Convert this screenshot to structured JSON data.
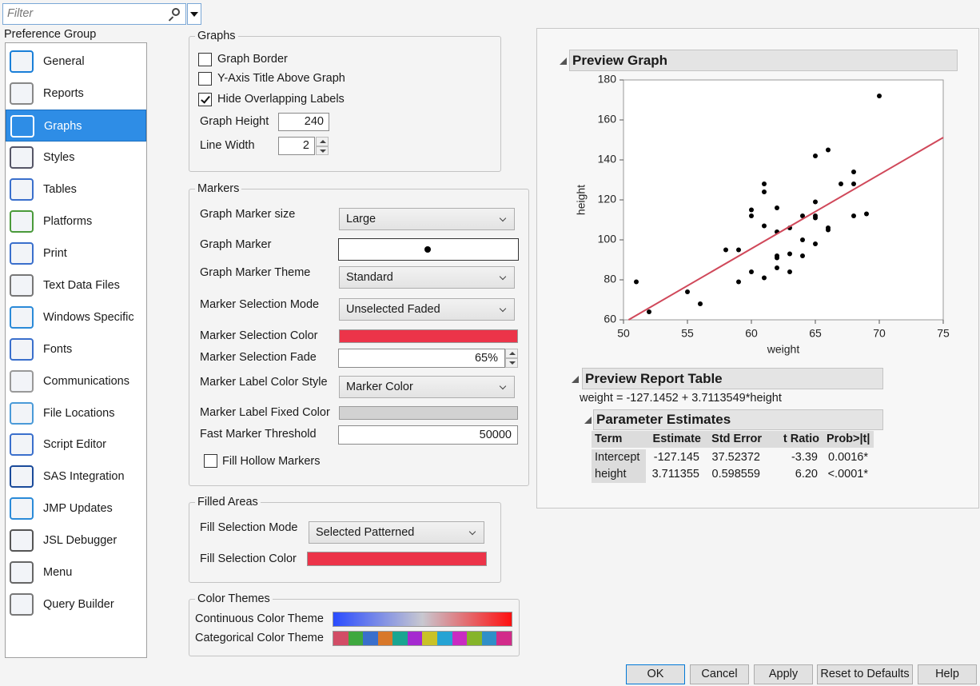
{
  "filter": {
    "placeholder": "Filter"
  },
  "preference_group": {
    "label": "Preference Group",
    "selected": 2,
    "items": [
      "General",
      "Reports",
      "Graphs",
      "Styles",
      "Tables",
      "Platforms",
      "Print",
      "Text Data Files",
      "Windows Specific",
      "Fonts",
      "Communications",
      "File Locations",
      "Script Editor",
      "SAS Integration",
      "JMP Updates",
      "JSL Debugger",
      "Menu",
      "Query Builder"
    ]
  },
  "graphs": {
    "legend": "Graphs",
    "checkboxes": [
      {
        "label": "Graph Border",
        "checked": false
      },
      {
        "label": "Y-Axis Title Above Graph",
        "checked": false
      },
      {
        "label": "Hide Overlapping Labels",
        "checked": true
      }
    ],
    "fields": [
      {
        "label": "Graph Height",
        "value": 240,
        "spin": false
      },
      {
        "label": "Line Width",
        "value": 2,
        "spin": true
      }
    ]
  },
  "markers": {
    "legend": "Markers",
    "rows": [
      {
        "label": "Graph Marker size",
        "dropdown": "Large"
      },
      {
        "label": "Graph Marker",
        "marker_color": "#000000"
      },
      {
        "label": "Graph Marker Theme",
        "dropdown": "Standard"
      },
      {
        "label": "Marker Selection Mode",
        "dropdown": "Unselected Faded"
      },
      {
        "label": "Marker Selection Color",
        "color": "#ec3449"
      },
      {
        "label": "Marker Selection Fade",
        "spin_text": "65%"
      },
      {
        "label": "Marker Label Color Style",
        "dropdown": "Marker Color"
      },
      {
        "label": "Marker Label Fixed Color",
        "color": "#d2d2d2"
      },
      {
        "label": "Fast Marker Threshold",
        "text_value": 50000
      }
    ],
    "fill_hollow": {
      "label": "Fill Hollow Markers",
      "checked": false
    }
  },
  "filled_areas": {
    "legend": "Filled Areas",
    "rows": [
      {
        "label": "Fill Selection Mode",
        "dropdown": "Selected Patterned"
      },
      {
        "label": "Fill Selection Color",
        "color": "#ec3449"
      }
    ]
  },
  "color_themes": {
    "legend": "Color Themes",
    "continuous": {
      "label": "Continuous Color Theme",
      "colors": [
        "#2a4cff",
        "#c8c8d0",
        "#ff1010"
      ]
    },
    "categorical": {
      "label": "Categorical Color Theme",
      "colors": [
        "#d24d66",
        "#3fa83f",
        "#3a6fcc",
        "#d8782a",
        "#1aa591",
        "#a52ad0",
        "#c9c227",
        "#25a3d4",
        "#c92bc2",
        "#85b42a",
        "#2f8fc8",
        "#d22b8a"
      ]
    }
  },
  "chart_data": {
    "type": "scatter",
    "title": "Preview Graph",
    "xlabel": "weight",
    "ylabel": "height",
    "xlim": [
      50,
      75
    ],
    "ylim": [
      60,
      180
    ],
    "xticks": [
      50,
      55,
      60,
      65,
      70,
      75
    ],
    "yticks": [
      60,
      80,
      100,
      120,
      140,
      160,
      180
    ],
    "color": "#000000",
    "x": [
      51,
      52,
      55,
      56,
      58,
      59,
      59,
      60,
      60,
      60,
      61,
      61,
      61,
      61,
      62,
      62,
      62,
      62,
      62,
      63,
      63,
      63,
      64,
      64,
      64,
      65,
      65,
      65,
      65,
      65,
      66,
      66,
      66,
      67,
      68,
      68,
      68,
      69,
      70
    ],
    "y": [
      79,
      64,
      74,
      68,
      95,
      95,
      79,
      115,
      112,
      84,
      128,
      124,
      107,
      81,
      116,
      104,
      92,
      91,
      86,
      106,
      93,
      84,
      112,
      100,
      92,
      142,
      119,
      112,
      111,
      98,
      145,
      106,
      105,
      128,
      134,
      128,
      112,
      113,
      172
    ],
    "fit_line": {
      "color": "#d0485a",
      "x": [
        50.4,
        75
      ],
      "y": [
        60,
        151.2
      ]
    }
  },
  "preview": {
    "report_title": "Preview Report Table",
    "equation": "weight = -127.1452 + 3.7113549*height",
    "estimates_title": "Parameter Estimates",
    "columns": [
      "Term",
      "Estimate",
      "Std Error",
      "t Ratio",
      "Prob>|t|"
    ],
    "rows": [
      [
        "Intercept",
        "-127.145",
        "37.52372",
        "-3.39",
        "0.0016*"
      ],
      [
        "height",
        "3.711355",
        "0.598559",
        "6.20",
        "<.0001*"
      ]
    ]
  },
  "buttons": [
    "OK",
    "Cancel",
    "Apply",
    "Reset to Defaults",
    "Help"
  ]
}
